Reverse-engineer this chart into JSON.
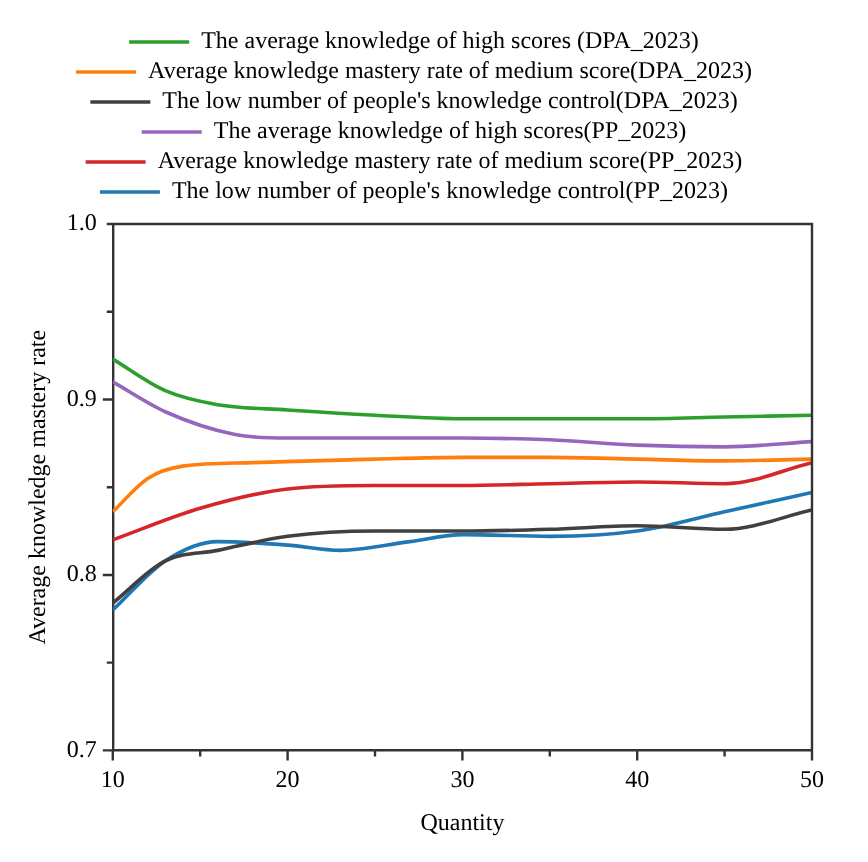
{
  "chart_data": {
    "type": "line",
    "xlabel": "Quantity",
    "ylabel": "Average knowledge mastery rate",
    "xlim": [
      10,
      50
    ],
    "ylim": [
      0.7,
      1.0
    ],
    "xticks": [
      10,
      {
        "value": 15,
        "label": null
      },
      20,
      {
        "value": 25,
        "label": null
      },
      30,
      {
        "value": 35,
        "label": null
      },
      40,
      {
        "value": 45,
        "label": null
      },
      50
    ],
    "yticks": [
      0.7,
      {
        "value": 0.75,
        "label": null
      },
      0.8,
      {
        "value": 0.85,
        "label": null
      },
      0.9,
      {
        "value": 0.95,
        "label": null
      },
      {
        "value": 1,
        "label": "1.0"
      }
    ],
    "legend": "top",
    "grid": false,
    "marker": "none",
    "line_style": "solid",
    "series": [
      {
        "name": "The average knowledge of high scores (DPA_2023)",
        "color": "#2ca02c",
        "x": [
          10,
          13,
          16,
          20,
          25,
          30,
          35,
          40,
          45,
          50
        ],
        "values": [
          0.923,
          0.905,
          0.897,
          0.894,
          0.891,
          0.889,
          0.889,
          0.889,
          0.89,
          0.891
        ]
      },
      {
        "name": "Average knowledge mastery rate of medium score(DPA_2023)",
        "color": "#ff7f0e",
        "x": [
          10,
          12,
          14,
          18,
          25,
          30,
          35,
          40,
          45,
          50
        ],
        "values": [
          0.836,
          0.855,
          0.862,
          0.864,
          0.866,
          0.867,
          0.867,
          0.866,
          0.865,
          0.866
        ]
      },
      {
        "name": "The low number of people's knowledge control(DPA_2023)",
        "color": "#404040",
        "x": [
          10,
          13,
          16,
          20,
          25,
          30,
          35,
          40,
          45,
          50
        ],
        "values": [
          0.784,
          0.808,
          0.814,
          0.822,
          0.825,
          0.825,
          0.826,
          0.828,
          0.826,
          0.837
        ]
      },
      {
        "name": "The average knowledge of high scores(PP_2023)",
        "color": "#9467bd",
        "x": [
          10,
          13,
          17,
          20,
          25,
          30,
          35,
          40,
          45,
          50
        ],
        "values": [
          0.91,
          0.893,
          0.88,
          0.878,
          0.878,
          0.878,
          0.877,
          0.874,
          0.873,
          0.876
        ]
      },
      {
        "name": "Average knowledge mastery rate of medium score(PP_2023)",
        "color": "#d62728",
        "x": [
          10,
          15,
          20,
          25,
          30,
          35,
          40,
          45,
          50
        ],
        "values": [
          0.82,
          0.838,
          0.849,
          0.851,
          0.851,
          0.852,
          0.853,
          0.852,
          0.864
        ]
      },
      {
        "name": "The low number of people's knowledge control(PP_2023)",
        "color": "#1f77b4",
        "x": [
          10,
          13,
          16,
          20,
          23,
          27,
          30,
          35,
          40,
          45,
          50
        ],
        "values": [
          0.78,
          0.808,
          0.819,
          0.817,
          0.814,
          0.819,
          0.823,
          0.822,
          0.825,
          0.836,
          0.847
        ]
      }
    ]
  }
}
